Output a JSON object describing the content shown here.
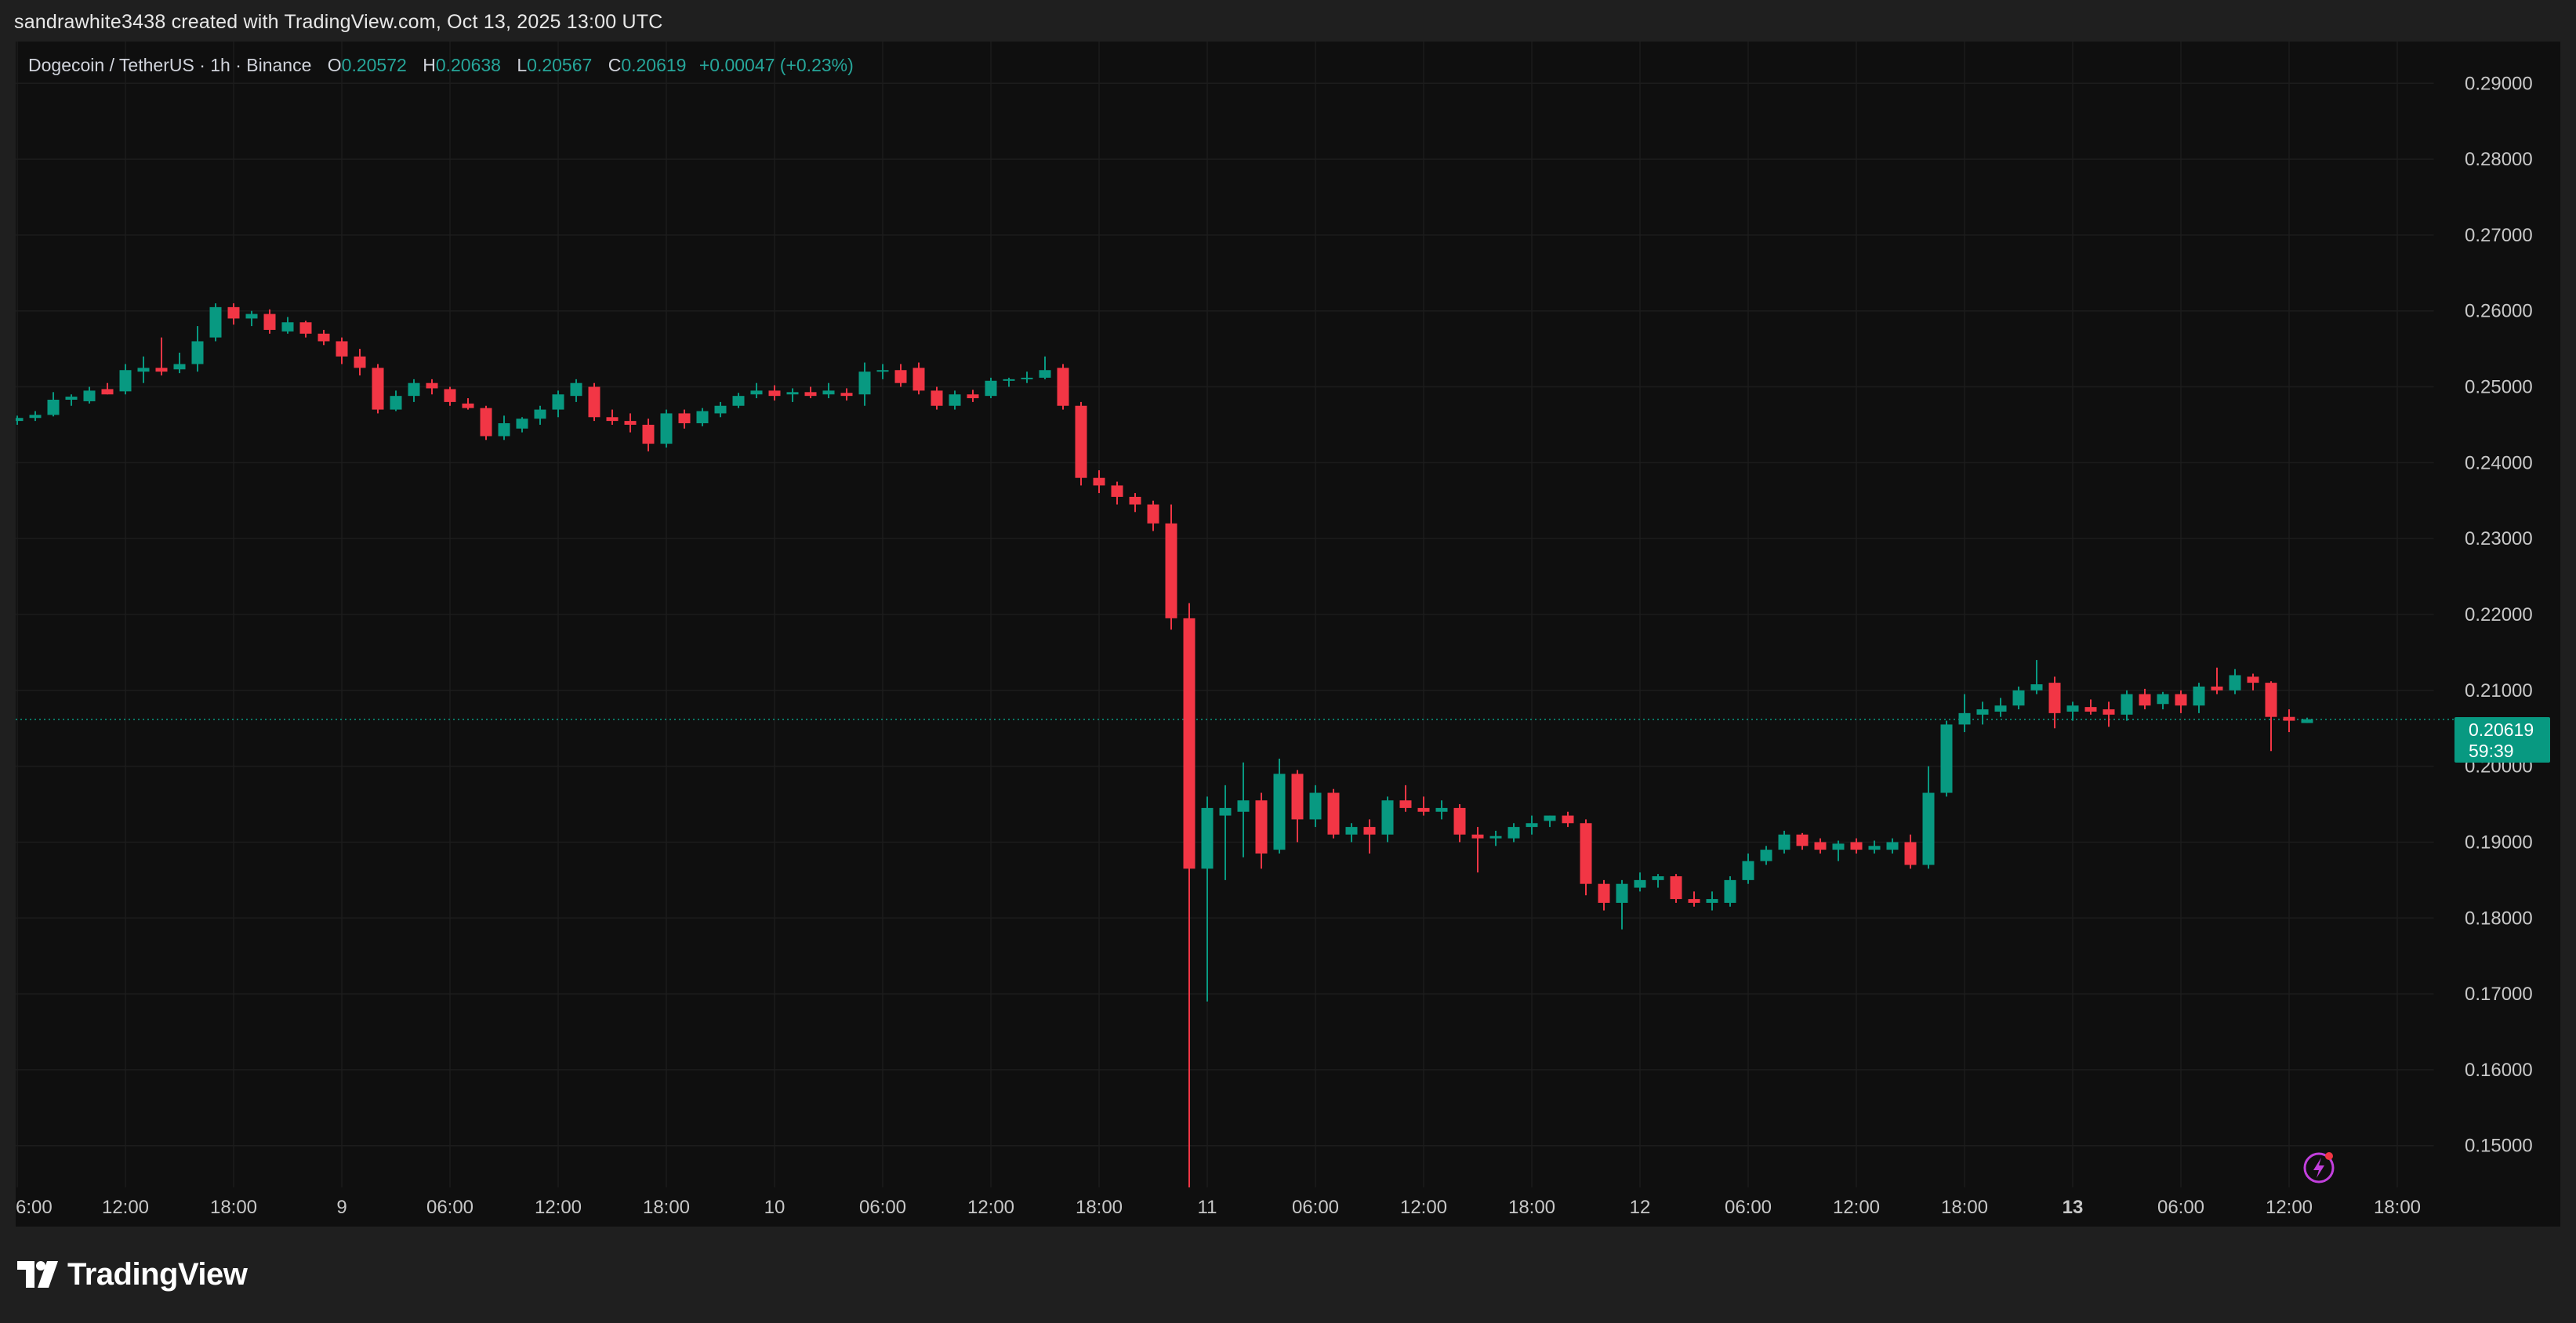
{
  "credit": "sandrawhite3438 created with TradingView.com, Oct 13, 2025 13:00 UTC",
  "legend": {
    "symbol": "Dogecoin / TetherUS · 1h · Binance",
    "o_label": "O",
    "o_value": "0.20572",
    "h_label": "H",
    "h_value": "0.20638",
    "l_label": "L",
    "l_value": "0.20567",
    "c_label": "C",
    "c_value": "0.20619",
    "change": "+0.00047 (+0.23%)"
  },
  "price_tag": {
    "price": "0.20619",
    "countdown": "59:39"
  },
  "footer": {
    "brand": "TradingView"
  },
  "colors": {
    "up": "#089981",
    "down": "#f23645",
    "background": "#0f0f0f",
    "grid": "#1d1d1d"
  },
  "icons": [
    "tradingview-logo-icon",
    "lightning-bolt-icon"
  ],
  "chart_data": {
    "type": "candlestick",
    "ylim": [
      0.1445,
      0.2955
    ],
    "y_ticks": [
      "0.29000",
      "0.28000",
      "0.27000",
      "0.26000",
      "0.25000",
      "0.24000",
      "0.23000",
      "0.22000",
      "0.21000",
      "0.20000",
      "0.19000",
      "0.18000",
      "0.17000",
      "0.16000",
      "0.15000"
    ],
    "x_ticks": [
      "6:00",
      "12:00",
      "18:00",
      "9",
      "06:00",
      "12:00",
      "18:00",
      "10",
      "06:00",
      "12:00",
      "18:00",
      "11",
      "06:00",
      "12:00",
      "18:00",
      "12",
      "06:00",
      "12:00",
      "18:00",
      "13",
      "06:00",
      "12:00",
      "18:00"
    ],
    "x_ticks_bold": [
      "13"
    ],
    "x_tick_candle_index": [
      0,
      6,
      12,
      18,
      24,
      30,
      36,
      42,
      48,
      54,
      60,
      66,
      72,
      78,
      84,
      90,
      96,
      102,
      108,
      114,
      120,
      126,
      132
    ],
    "last_price": 0.20619,
    "candles": [
      {
        "o": 0.2455,
        "h": 0.2462,
        "l": 0.245,
        "c": 0.2459
      },
      {
        "o": 0.2459,
        "h": 0.2468,
        "l": 0.2455,
        "c": 0.2463
      },
      {
        "o": 0.2463,
        "h": 0.2493,
        "l": 0.2461,
        "c": 0.2483
      },
      {
        "o": 0.2483,
        "h": 0.249,
        "l": 0.2475,
        "c": 0.2487
      },
      {
        "o": 0.2481,
        "h": 0.25,
        "l": 0.2478,
        "c": 0.2495
      },
      {
        "o": 0.2497,
        "h": 0.2505,
        "l": 0.249,
        "c": 0.249
      },
      {
        "o": 0.2494,
        "h": 0.253,
        "l": 0.249,
        "c": 0.2522
      },
      {
        "o": 0.252,
        "h": 0.254,
        "l": 0.2505,
        "c": 0.2525
      },
      {
        "o": 0.2525,
        "h": 0.2565,
        "l": 0.2515,
        "c": 0.252
      },
      {
        "o": 0.2523,
        "h": 0.2545,
        "l": 0.2518,
        "c": 0.253
      },
      {
        "o": 0.253,
        "h": 0.258,
        "l": 0.252,
        "c": 0.256
      },
      {
        "o": 0.2565,
        "h": 0.261,
        "l": 0.256,
        "c": 0.2605
      },
      {
        "o": 0.2605,
        "h": 0.261,
        "l": 0.2582,
        "c": 0.259
      },
      {
        "o": 0.259,
        "h": 0.26,
        "l": 0.258,
        "c": 0.2596
      },
      {
        "o": 0.2596,
        "h": 0.2602,
        "l": 0.257,
        "c": 0.2575
      },
      {
        "o": 0.2573,
        "h": 0.2592,
        "l": 0.257,
        "c": 0.2585
      },
      {
        "o": 0.2585,
        "h": 0.2587,
        "l": 0.2565,
        "c": 0.257
      },
      {
        "o": 0.257,
        "h": 0.2575,
        "l": 0.2555,
        "c": 0.256
      },
      {
        "o": 0.256,
        "h": 0.2565,
        "l": 0.253,
        "c": 0.254
      },
      {
        "o": 0.254,
        "h": 0.255,
        "l": 0.2515,
        "c": 0.2525
      },
      {
        "o": 0.2525,
        "h": 0.253,
        "l": 0.2465,
        "c": 0.247
      },
      {
        "o": 0.247,
        "h": 0.2495,
        "l": 0.2468,
        "c": 0.2488
      },
      {
        "o": 0.2488,
        "h": 0.251,
        "l": 0.248,
        "c": 0.2505
      },
      {
        "o": 0.2505,
        "h": 0.251,
        "l": 0.249,
        "c": 0.2498
      },
      {
        "o": 0.2497,
        "h": 0.25,
        "l": 0.2475,
        "c": 0.248
      },
      {
        "o": 0.2478,
        "h": 0.2485,
        "l": 0.247,
        "c": 0.2472
      },
      {
        "o": 0.2472,
        "h": 0.2475,
        "l": 0.243,
        "c": 0.2435
      },
      {
        "o": 0.2435,
        "h": 0.2462,
        "l": 0.243,
        "c": 0.2452
      },
      {
        "o": 0.2445,
        "h": 0.246,
        "l": 0.244,
        "c": 0.2458
      },
      {
        "o": 0.2458,
        "h": 0.2475,
        "l": 0.245,
        "c": 0.247
      },
      {
        "o": 0.247,
        "h": 0.2495,
        "l": 0.246,
        "c": 0.249
      },
      {
        "o": 0.2488,
        "h": 0.251,
        "l": 0.248,
        "c": 0.2505
      },
      {
        "o": 0.25,
        "h": 0.2505,
        "l": 0.2455,
        "c": 0.246
      },
      {
        "o": 0.246,
        "h": 0.247,
        "l": 0.245,
        "c": 0.2455
      },
      {
        "o": 0.2455,
        "h": 0.2465,
        "l": 0.244,
        "c": 0.245
      },
      {
        "o": 0.245,
        "h": 0.2458,
        "l": 0.2415,
        "c": 0.2425
      },
      {
        "o": 0.2425,
        "h": 0.247,
        "l": 0.242,
        "c": 0.2465
      },
      {
        "o": 0.2465,
        "h": 0.247,
        "l": 0.2445,
        "c": 0.2452
      },
      {
        "o": 0.2452,
        "h": 0.2472,
        "l": 0.2448,
        "c": 0.2468
      },
      {
        "o": 0.2465,
        "h": 0.248,
        "l": 0.246,
        "c": 0.2475
      },
      {
        "o": 0.2475,
        "h": 0.2492,
        "l": 0.2472,
        "c": 0.2488
      },
      {
        "o": 0.249,
        "h": 0.2505,
        "l": 0.2485,
        "c": 0.2495
      },
      {
        "o": 0.2495,
        "h": 0.2502,
        "l": 0.2482,
        "c": 0.2488
      },
      {
        "o": 0.249,
        "h": 0.2498,
        "l": 0.248,
        "c": 0.2493
      },
      {
        "o": 0.2493,
        "h": 0.25,
        "l": 0.2485,
        "c": 0.2488
      },
      {
        "o": 0.249,
        "h": 0.2505,
        "l": 0.2485,
        "c": 0.2495
      },
      {
        "o": 0.2492,
        "h": 0.2498,
        "l": 0.2482,
        "c": 0.2488
      },
      {
        "o": 0.249,
        "h": 0.2532,
        "l": 0.2475,
        "c": 0.252
      },
      {
        "o": 0.252,
        "h": 0.253,
        "l": 0.251,
        "c": 0.2522
      },
      {
        "o": 0.2522,
        "h": 0.253,
        "l": 0.25,
        "c": 0.2505
      },
      {
        "o": 0.2525,
        "h": 0.2532,
        "l": 0.249,
        "c": 0.2495
      },
      {
        "o": 0.2495,
        "h": 0.25,
        "l": 0.247,
        "c": 0.2475
      },
      {
        "o": 0.2475,
        "h": 0.2495,
        "l": 0.247,
        "c": 0.249
      },
      {
        "o": 0.249,
        "h": 0.2496,
        "l": 0.248,
        "c": 0.2485
      },
      {
        "o": 0.2488,
        "h": 0.2512,
        "l": 0.2485,
        "c": 0.2508
      },
      {
        "o": 0.2508,
        "h": 0.2512,
        "l": 0.25,
        "c": 0.251
      },
      {
        "o": 0.251,
        "h": 0.252,
        "l": 0.2505,
        "c": 0.2512
      },
      {
        "o": 0.2512,
        "h": 0.254,
        "l": 0.251,
        "c": 0.2522
      },
      {
        "o": 0.2525,
        "h": 0.253,
        "l": 0.247,
        "c": 0.2475
      },
      {
        "o": 0.2475,
        "h": 0.248,
        "l": 0.237,
        "c": 0.238
      },
      {
        "o": 0.238,
        "h": 0.239,
        "l": 0.236,
        "c": 0.237
      },
      {
        "o": 0.237,
        "h": 0.2375,
        "l": 0.2345,
        "c": 0.2355
      },
      {
        "o": 0.2355,
        "h": 0.236,
        "l": 0.2335,
        "c": 0.2345
      },
      {
        "o": 0.2345,
        "h": 0.235,
        "l": 0.231,
        "c": 0.232
      },
      {
        "o": 0.232,
        "h": 0.2345,
        "l": 0.218,
        "c": 0.2195
      },
      {
        "o": 0.2195,
        "h": 0.2215,
        "l": 0.1445,
        "c": 0.1865
      },
      {
        "o": 0.1865,
        "h": 0.196,
        "l": 0.169,
        "c": 0.1945
      },
      {
        "o": 0.1935,
        "h": 0.1975,
        "l": 0.185,
        "c": 0.1945
      },
      {
        "o": 0.194,
        "h": 0.2005,
        "l": 0.188,
        "c": 0.1955
      },
      {
        "o": 0.1955,
        "h": 0.1965,
        "l": 0.1865,
        "c": 0.1885
      },
      {
        "o": 0.189,
        "h": 0.201,
        "l": 0.1885,
        "c": 0.199
      },
      {
        "o": 0.199,
        "h": 0.1995,
        "l": 0.19,
        "c": 0.193
      },
      {
        "o": 0.193,
        "h": 0.1975,
        "l": 0.192,
        "c": 0.1965
      },
      {
        "o": 0.1965,
        "h": 0.197,
        "l": 0.1905,
        "c": 0.191
      },
      {
        "o": 0.191,
        "h": 0.1925,
        "l": 0.19,
        "c": 0.192
      },
      {
        "o": 0.192,
        "h": 0.193,
        "l": 0.1885,
        "c": 0.191
      },
      {
        "o": 0.191,
        "h": 0.196,
        "l": 0.19,
        "c": 0.1955
      },
      {
        "o": 0.1955,
        "h": 0.1975,
        "l": 0.194,
        "c": 0.1945
      },
      {
        "o": 0.1945,
        "h": 0.196,
        "l": 0.1935,
        "c": 0.194
      },
      {
        "o": 0.194,
        "h": 0.1955,
        "l": 0.193,
        "c": 0.1945
      },
      {
        "o": 0.1945,
        "h": 0.195,
        "l": 0.19,
        "c": 0.191
      },
      {
        "o": 0.191,
        "h": 0.192,
        "l": 0.186,
        "c": 0.1905
      },
      {
        "o": 0.1905,
        "h": 0.1915,
        "l": 0.1895,
        "c": 0.1908
      },
      {
        "o": 0.1905,
        "h": 0.1925,
        "l": 0.19,
        "c": 0.192
      },
      {
        "o": 0.192,
        "h": 0.1935,
        "l": 0.191,
        "c": 0.1925
      },
      {
        "o": 0.1928,
        "h": 0.1935,
        "l": 0.192,
        "c": 0.1935
      },
      {
        "o": 0.1935,
        "h": 0.194,
        "l": 0.192,
        "c": 0.1925
      },
      {
        "o": 0.1925,
        "h": 0.193,
        "l": 0.183,
        "c": 0.1845
      },
      {
        "o": 0.1845,
        "h": 0.185,
        "l": 0.181,
        "c": 0.182
      },
      {
        "o": 0.182,
        "h": 0.185,
        "l": 0.1785,
        "c": 0.1845
      },
      {
        "o": 0.184,
        "h": 0.186,
        "l": 0.1835,
        "c": 0.185
      },
      {
        "o": 0.185,
        "h": 0.1858,
        "l": 0.184,
        "c": 0.1855
      },
      {
        "o": 0.1855,
        "h": 0.1858,
        "l": 0.182,
        "c": 0.1825
      },
      {
        "o": 0.1825,
        "h": 0.1835,
        "l": 0.1815,
        "c": 0.182
      },
      {
        "o": 0.182,
        "h": 0.1835,
        "l": 0.181,
        "c": 0.1825
      },
      {
        "o": 0.182,
        "h": 0.1855,
        "l": 0.1815,
        "c": 0.185
      },
      {
        "o": 0.185,
        "h": 0.1885,
        "l": 0.1845,
        "c": 0.1875
      },
      {
        "o": 0.1875,
        "h": 0.1895,
        "l": 0.187,
        "c": 0.189
      },
      {
        "o": 0.189,
        "h": 0.1915,
        "l": 0.1885,
        "c": 0.191
      },
      {
        "o": 0.191,
        "h": 0.1912,
        "l": 0.189,
        "c": 0.1895
      },
      {
        "o": 0.19,
        "h": 0.1905,
        "l": 0.1885,
        "c": 0.189
      },
      {
        "o": 0.189,
        "h": 0.1902,
        "l": 0.1875,
        "c": 0.1898
      },
      {
        "o": 0.19,
        "h": 0.1905,
        "l": 0.1885,
        "c": 0.189
      },
      {
        "o": 0.189,
        "h": 0.1902,
        "l": 0.1885,
        "c": 0.1895
      },
      {
        "o": 0.189,
        "h": 0.1905,
        "l": 0.1885,
        "c": 0.19
      },
      {
        "o": 0.19,
        "h": 0.191,
        "l": 0.1865,
        "c": 0.187
      },
      {
        "o": 0.187,
        "h": 0.2,
        "l": 0.1865,
        "c": 0.1965
      },
      {
        "o": 0.1965,
        "h": 0.206,
        "l": 0.196,
        "c": 0.2055
      },
      {
        "o": 0.2055,
        "h": 0.2095,
        "l": 0.2045,
        "c": 0.207
      },
      {
        "o": 0.2068,
        "h": 0.2085,
        "l": 0.2055,
        "c": 0.2075
      },
      {
        "o": 0.2072,
        "h": 0.209,
        "l": 0.2065,
        "c": 0.208
      },
      {
        "o": 0.208,
        "h": 0.2105,
        "l": 0.2075,
        "c": 0.21
      },
      {
        "o": 0.21,
        "h": 0.214,
        "l": 0.2095,
        "c": 0.2108
      },
      {
        "o": 0.211,
        "h": 0.2118,
        "l": 0.205,
        "c": 0.207
      },
      {
        "o": 0.2072,
        "h": 0.2085,
        "l": 0.206,
        "c": 0.208
      },
      {
        "o": 0.2078,
        "h": 0.2088,
        "l": 0.2068,
        "c": 0.2072
      },
      {
        "o": 0.2075,
        "h": 0.2085,
        "l": 0.2052,
        "c": 0.2068
      },
      {
        "o": 0.2068,
        "h": 0.21,
        "l": 0.206,
        "c": 0.2095
      },
      {
        "o": 0.2095,
        "h": 0.2102,
        "l": 0.2075,
        "c": 0.208
      },
      {
        "o": 0.2082,
        "h": 0.2098,
        "l": 0.2075,
        "c": 0.2095
      },
      {
        "o": 0.2095,
        "h": 0.21,
        "l": 0.207,
        "c": 0.208
      },
      {
        "o": 0.208,
        "h": 0.211,
        "l": 0.207,
        "c": 0.2105
      },
      {
        "o": 0.2105,
        "h": 0.213,
        "l": 0.2095,
        "c": 0.21
      },
      {
        "o": 0.21,
        "h": 0.2128,
        "l": 0.2095,
        "c": 0.212
      },
      {
        "o": 0.2118,
        "h": 0.2122,
        "l": 0.21,
        "c": 0.211
      },
      {
        "o": 0.211,
        "h": 0.2112,
        "l": 0.202,
        "c": 0.2065
      },
      {
        "o": 0.2065,
        "h": 0.2075,
        "l": 0.2045,
        "c": 0.206
      },
      {
        "o": 0.2057,
        "h": 0.2064,
        "l": 0.2057,
        "c": 0.2062
      }
    ]
  }
}
